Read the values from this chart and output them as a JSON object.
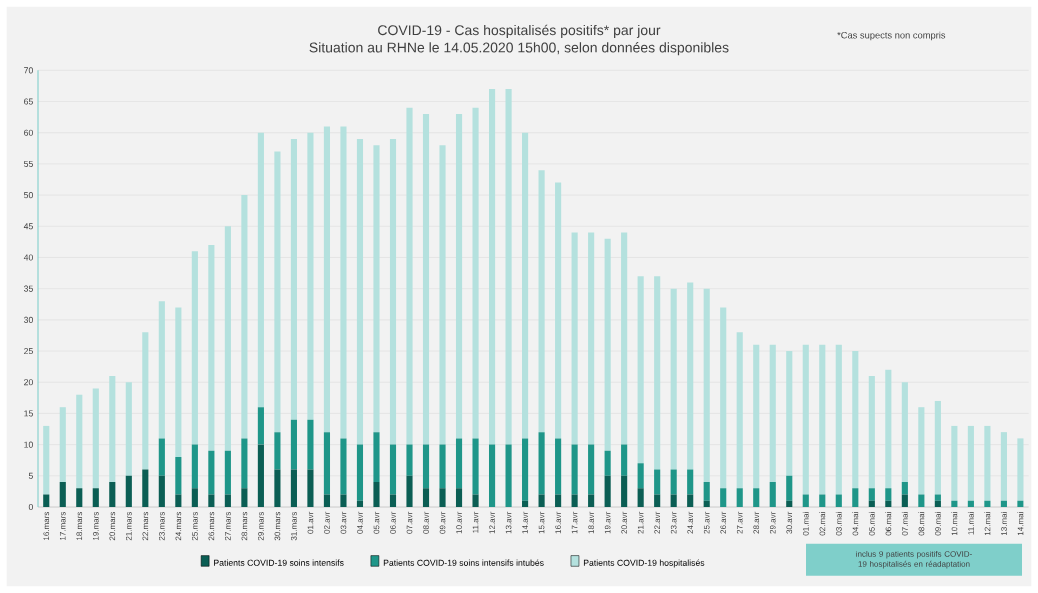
{
  "chart_data": {
    "type": "bar",
    "stacked": true,
    "title": "COVID-19 - Cas hospitalisés positifs* par jour",
    "subtitle": "Situation au RHNe le 14.05.2020 15h00, selon données disponibles",
    "annotations": [
      "*Cas supects non compris",
      "inclus 9 patients positifs COVID-19 hospitalisés en réadaptation"
    ],
    "categories": [
      "16.mars",
      "17.mars",
      "18.mars",
      "19.mars",
      "20.mars",
      "21.mars",
      "22.mars",
      "23.mars",
      "24.mars",
      "25.mars",
      "26.mars",
      "27.mars",
      "28.mars",
      "29.mars",
      "30.mars",
      "31.mars",
      "01.avr",
      "02.avr",
      "03.avr",
      "04.avr",
      "05.avr",
      "06.avr",
      "07.avr",
      "08.avr",
      "09.avr",
      "10.avr",
      "11.avr",
      "12.avr",
      "13.avr",
      "14.avr",
      "15.avr",
      "16.avr",
      "17.avr",
      "18.avr",
      "19.avr",
      "20.avr",
      "21.avr",
      "22.avr",
      "23.avr",
      "24.avr",
      "25.avr",
      "26.avr",
      "27.avr",
      "28.avr",
      "29.avr",
      "30.avr",
      "01.mai",
      "02.mai",
      "03.mai",
      "04.mai",
      "05.mai",
      "06.mai",
      "07.mai",
      "08.mai",
      "09.mai",
      "10.mai",
      "11.mai",
      "12.mai",
      "13.mai",
      "14.mai"
    ],
    "series": [
      {
        "name": "Patients COVID-19 soins intensifs",
        "color": "#0b5e54",
        "values": [
          2,
          4,
          3,
          3,
          4,
          5,
          6,
          5,
          2,
          3,
          2,
          2,
          3,
          10,
          6,
          6,
          6,
          2,
          2,
          1,
          4,
          2,
          5,
          3,
          3,
          3,
          2,
          0,
          0,
          1,
          2,
          2,
          2,
          2,
          5,
          5,
          3,
          2,
          2,
          2,
          1,
          0,
          0,
          0,
          0,
          1,
          0,
          0,
          0,
          0,
          1,
          1,
          2,
          0,
          1,
          0,
          0,
          0,
          0,
          0
        ]
      },
      {
        "name": "Patients COVID-19 soins intensifs intubés",
        "color": "#1f9689",
        "values": [
          0,
          0,
          0,
          0,
          0,
          0,
          0,
          6,
          6,
          7,
          7,
          7,
          8,
          6,
          6,
          8,
          8,
          10,
          9,
          9,
          8,
          8,
          5,
          7,
          7,
          8,
          9,
          10,
          10,
          10,
          10,
          9,
          8,
          8,
          4,
          5,
          4,
          4,
          4,
          4,
          3,
          3,
          3,
          3,
          4,
          4,
          2,
          2,
          2,
          3,
          2,
          2,
          2,
          2,
          1,
          1,
          1,
          1,
          1,
          1
        ]
      },
      {
        "name": "Patients COVID-19 hospitalisés",
        "color": "#b4e1de",
        "values": [
          11,
          12,
          15,
          16,
          17,
          15,
          22,
          22,
          24,
          31,
          33,
          36,
          39,
          44,
          45,
          45,
          46,
          49,
          50,
          49,
          46,
          49,
          54,
          53,
          48,
          52,
          53,
          57,
          57,
          49,
          42,
          41,
          34,
          34,
          34,
          34,
          30,
          31,
          29,
          30,
          31,
          29,
          25,
          23,
          22,
          20,
          24,
          24,
          24,
          22,
          18,
          19,
          16,
          14,
          15,
          12,
          12,
          12,
          11,
          10
        ]
      }
    ],
    "ylim": [
      0,
      70
    ],
    "yticks": [
      0,
      5,
      10,
      15,
      20,
      25,
      30,
      35,
      40,
      45,
      50,
      55,
      60,
      65,
      70
    ],
    "grid": "y",
    "legend": "bottom"
  }
}
